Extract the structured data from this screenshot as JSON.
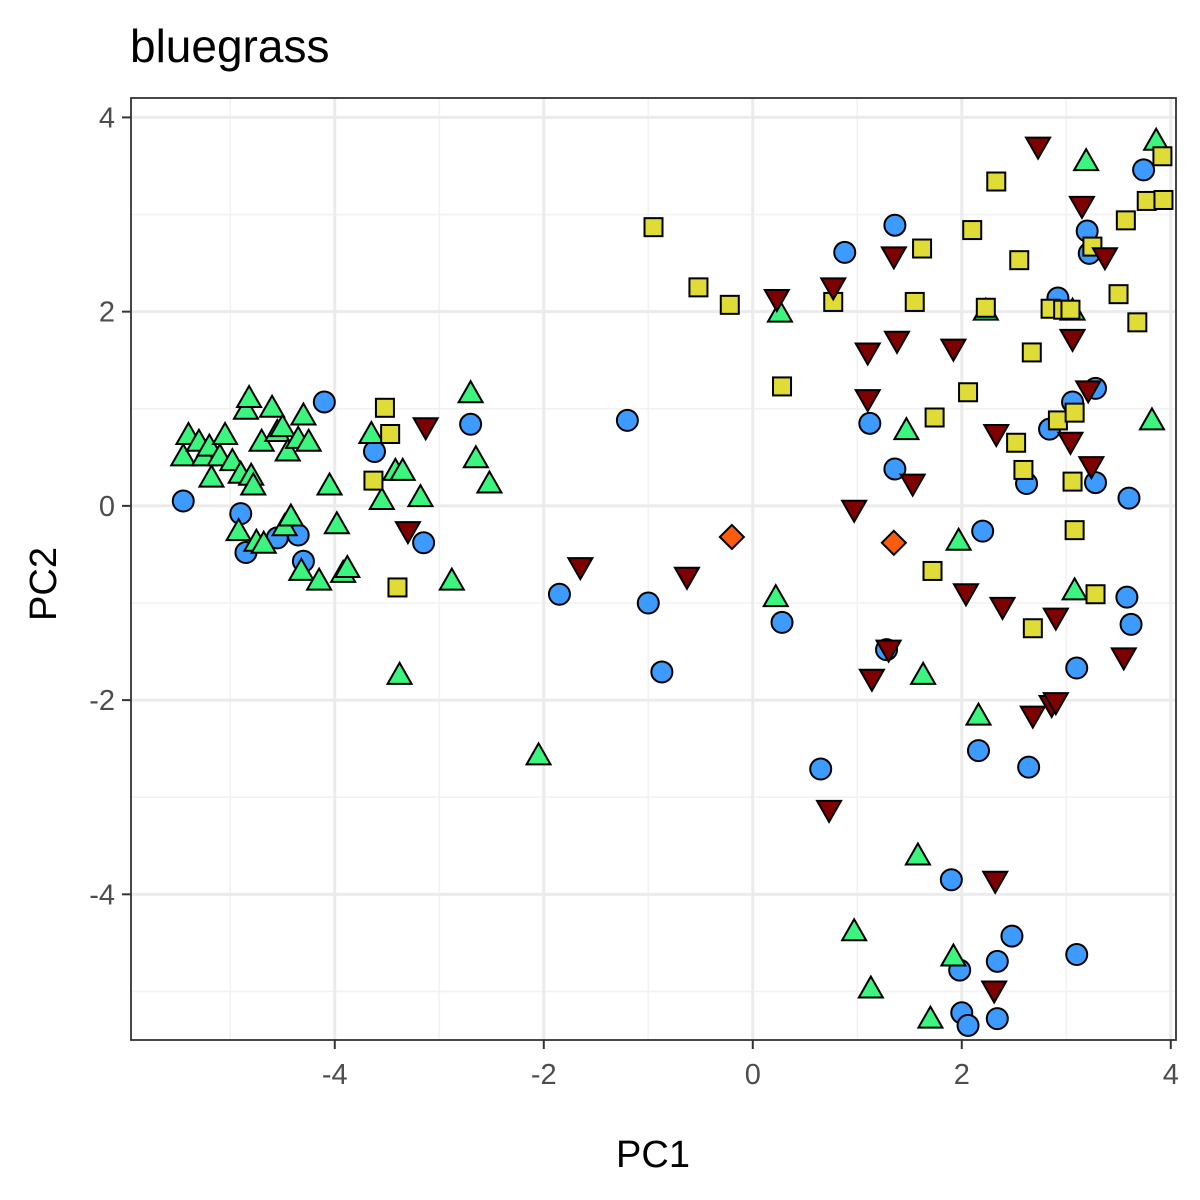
{
  "chart_data": {
    "type": "scatter",
    "title": "bluegrass",
    "xlabel": "PC1",
    "ylabel": "PC2",
    "xlim": [
      -5.95,
      4.05
    ],
    "ylim": [
      -5.5,
      4.2
    ],
    "x_ticks": [
      -4,
      -2,
      0,
      2,
      4
    ],
    "y_ticks": [
      -4,
      -2,
      0,
      2,
      4
    ],
    "grid": true,
    "legend": "none",
    "series": [
      {
        "shape": "circle",
        "color": "#3d9bff",
        "points": [
          [
            -5.45,
            0.05
          ],
          [
            -4.9,
            -0.08
          ],
          [
            -4.85,
            -0.48
          ],
          [
            -4.55,
            -0.33
          ],
          [
            -4.35,
            -0.3
          ],
          [
            -4.3,
            -0.57
          ],
          [
            -4.1,
            1.07
          ],
          [
            -3.62,
            0.56
          ],
          [
            -3.15,
            -0.38
          ],
          [
            -2.7,
            0.84
          ],
          [
            -1.85,
            -0.91
          ],
          [
            -1.2,
            0.88
          ],
          [
            -1.0,
            -1.0
          ],
          [
            -0.87,
            -1.71
          ],
          [
            0.28,
            -1.2
          ],
          [
            0.65,
            -2.71
          ],
          [
            0.88,
            2.61
          ],
          [
            1.12,
            0.85
          ],
          [
            1.36,
            2.89
          ],
          [
            1.36,
            0.38
          ],
          [
            1.28,
            -1.48
          ],
          [
            1.9,
            -3.85
          ],
          [
            1.98,
            -4.78
          ],
          [
            2.0,
            -5.22
          ],
          [
            2.06,
            -5.35
          ],
          [
            2.16,
            -2.52
          ],
          [
            2.2,
            -0.26
          ],
          [
            2.34,
            -4.69
          ],
          [
            2.34,
            -5.28
          ],
          [
            2.48,
            -4.43
          ],
          [
            2.62,
            0.23
          ],
          [
            2.64,
            -2.69
          ],
          [
            2.84,
            0.79
          ],
          [
            2.92,
            2.14
          ],
          [
            3.06,
            1.07
          ],
          [
            3.1,
            -1.67
          ],
          [
            3.1,
            -4.62
          ],
          [
            3.2,
            2.83
          ],
          [
            3.22,
            2.6
          ],
          [
            3.28,
            1.21
          ],
          [
            3.28,
            0.24
          ],
          [
            3.58,
            -0.94
          ],
          [
            3.6,
            0.08
          ],
          [
            3.62,
            -1.22
          ],
          [
            3.74,
            3.46
          ]
        ]
      },
      {
        "shape": "triangle-up",
        "color": "#3cf57f",
        "points": [
          [
            -5.45,
            0.5
          ],
          [
            -5.4,
            0.72
          ],
          [
            -5.3,
            0.65
          ],
          [
            -5.25,
            0.5
          ],
          [
            -5.2,
            0.6
          ],
          [
            -5.18,
            0.28
          ],
          [
            -5.1,
            0.5
          ],
          [
            -5.05,
            0.72
          ],
          [
            -4.98,
            0.45
          ],
          [
            -4.92,
            -0.27
          ],
          [
            -4.9,
            0.32
          ],
          [
            -4.85,
            0.98
          ],
          [
            -4.82,
            1.1
          ],
          [
            -4.8,
            0.3
          ],
          [
            -4.78,
            0.2
          ],
          [
            -4.75,
            -0.38
          ],
          [
            -4.7,
            0.65
          ],
          [
            -4.68,
            -0.4
          ],
          [
            -4.6,
            1.0
          ],
          [
            -4.55,
            0.75
          ],
          [
            -4.5,
            0.8
          ],
          [
            -4.48,
            -0.22
          ],
          [
            -4.45,
            0.55
          ],
          [
            -4.42,
            -0.12
          ],
          [
            -4.35,
            0.68
          ],
          [
            -4.32,
            -0.68
          ],
          [
            -4.3,
            0.92
          ],
          [
            -4.25,
            0.65
          ],
          [
            -4.15,
            -0.78
          ],
          [
            -4.05,
            0.2
          ],
          [
            -3.98,
            -0.2
          ],
          [
            -3.92,
            -0.7
          ],
          [
            -3.88,
            -0.65
          ],
          [
            -3.65,
            0.73
          ],
          [
            -3.55,
            0.05
          ],
          [
            -3.42,
            0.35
          ],
          [
            -3.35,
            0.35
          ],
          [
            -3.38,
            -1.75
          ],
          [
            -3.18,
            0.08
          ],
          [
            -2.88,
            -0.78
          ],
          [
            -2.7,
            1.15
          ],
          [
            -2.65,
            0.48
          ],
          [
            -2.52,
            0.22
          ],
          [
            -2.05,
            -2.58
          ],
          [
            0.22,
            -0.95
          ],
          [
            0.26,
            1.98
          ],
          [
            0.97,
            -4.39
          ],
          [
            1.13,
            -4.98
          ],
          [
            1.47,
            0.77
          ],
          [
            1.58,
            -3.61
          ],
          [
            1.63,
            -1.75
          ],
          [
            1.7,
            -5.29
          ],
          [
            1.92,
            -4.65
          ],
          [
            1.97,
            -0.37
          ],
          [
            2.16,
            -2.17
          ],
          [
            2.23,
            2.0
          ],
          [
            3.06,
            2.0
          ],
          [
            3.08,
            -0.88
          ],
          [
            3.19,
            3.54
          ],
          [
            3.82,
            0.87
          ],
          [
            3.86,
            3.75
          ]
        ]
      },
      {
        "shape": "square",
        "color": "#e0dc37",
        "points": [
          [
            -3.52,
            1.01
          ],
          [
            -3.47,
            0.74
          ],
          [
            -3.63,
            0.26
          ],
          [
            -3.4,
            -0.84
          ],
          [
            -0.95,
            2.87
          ],
          [
            -0.52,
            2.25
          ],
          [
            -0.22,
            2.07
          ],
          [
            0.28,
            1.23
          ],
          [
            0.77,
            2.1
          ],
          [
            1.62,
            2.65
          ],
          [
            1.55,
            2.1
          ],
          [
            1.72,
            -0.67
          ],
          [
            1.74,
            0.91
          ],
          [
            2.06,
            1.17
          ],
          [
            2.1,
            2.84
          ],
          [
            2.23,
            2.04
          ],
          [
            2.33,
            3.34
          ],
          [
            2.52,
            0.65
          ],
          [
            2.55,
            2.53
          ],
          [
            2.59,
            0.37
          ],
          [
            2.67,
            1.58
          ],
          [
            2.68,
            -1.26
          ],
          [
            2.85,
            2.03
          ],
          [
            2.97,
            2.02
          ],
          [
            2.92,
            0.88
          ],
          [
            3.04,
            2.02
          ],
          [
            3.06,
            0.25
          ],
          [
            3.08,
            0.96
          ],
          [
            3.08,
            -0.25
          ],
          [
            3.25,
            2.67
          ],
          [
            3.28,
            -0.91
          ],
          [
            3.5,
            2.18
          ],
          [
            3.57,
            2.94
          ],
          [
            3.68,
            1.89
          ],
          [
            3.77,
            3.14
          ],
          [
            3.92,
            3.6
          ],
          [
            3.93,
            3.15
          ]
        ]
      },
      {
        "shape": "triangle-down",
        "color": "#7e0000",
        "points": [
          [
            -3.13,
            0.82
          ],
          [
            -3.3,
            -0.25
          ],
          [
            -1.65,
            -0.62
          ],
          [
            -0.63,
            -0.72
          ],
          [
            0.23,
            2.14
          ],
          [
            0.77,
            2.26
          ],
          [
            0.73,
            -3.12
          ],
          [
            0.97,
            -0.03
          ],
          [
            1.1,
            1.59
          ],
          [
            1.1,
            1.11
          ],
          [
            1.14,
            -1.77
          ],
          [
            1.35,
            2.58
          ],
          [
            1.38,
            1.71
          ],
          [
            1.3,
            -1.47
          ],
          [
            1.53,
            0.24
          ],
          [
            1.92,
            1.63
          ],
          [
            2.04,
            -0.89
          ],
          [
            2.33,
            0.75
          ],
          [
            2.39,
            -1.03
          ],
          [
            2.32,
            -3.85
          ],
          [
            2.31,
            -4.98
          ],
          [
            2.68,
            -2.15
          ],
          [
            2.73,
            3.71
          ],
          [
            2.86,
            -2.04
          ],
          [
            2.9,
            -2.01
          ],
          [
            2.9,
            -1.14
          ],
          [
            3.04,
            0.67
          ],
          [
            3.06,
            1.73
          ],
          [
            3.15,
            3.1
          ],
          [
            3.21,
            1.2
          ],
          [
            3.24,
            0.42
          ],
          [
            3.37,
            2.57
          ],
          [
            3.55,
            -1.55
          ]
        ]
      },
      {
        "shape": "diamond",
        "color": "#fa5c0f",
        "points": [
          [
            -0.2,
            -0.32
          ],
          [
            1.35,
            -0.38
          ]
        ]
      }
    ]
  }
}
